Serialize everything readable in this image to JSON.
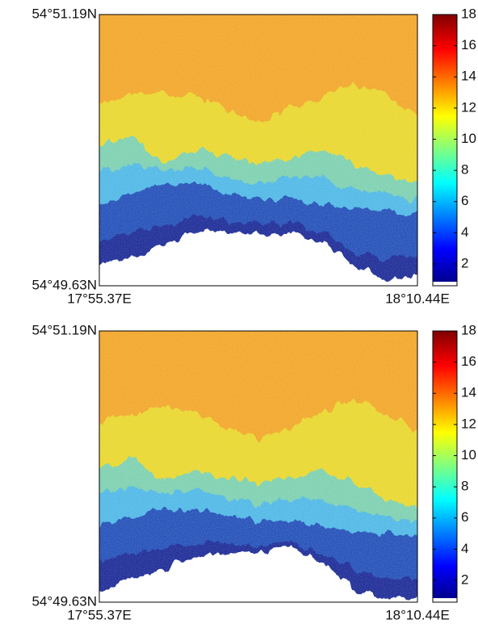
{
  "chart_data": [
    {
      "type": "heatmap",
      "xlim": [
        17.92283,
        18.174
      ],
      "xticks": [
        {
          "value": 17.92283,
          "label": "17°55.37E"
        },
        {
          "value": 18.174,
          "label": "18°10.44E"
        }
      ],
      "ylim": [
        54.82717,
        54.85317
      ],
      "yticks": [
        {
          "value": 54.82717,
          "label": "54°49.63N"
        },
        {
          "value": 54.85317,
          "label": "54°51.19N"
        }
      ],
      "colorbar": {
        "lim": [
          0.6,
          18
        ],
        "ticks": [
          2,
          4,
          6,
          8,
          10,
          12,
          14,
          16,
          18
        ]
      }
    },
    {
      "type": "heatmap",
      "xlim": [
        17.92283,
        18.174
      ],
      "xticks": [
        {
          "value": 17.92283,
          "label": "17°55.37E"
        },
        {
          "value": 18.174,
          "label": "18°10.44E"
        }
      ],
      "ylim": [
        54.82717,
        54.85317
      ],
      "yticks": [
        {
          "value": 54.82717,
          "label": "54°49.63N"
        },
        {
          "value": 54.85317,
          "label": "54°51.19N"
        }
      ],
      "colorbar": {
        "lim": [
          0.6,
          18
        ],
        "ticks": [
          2,
          4,
          6,
          8,
          10,
          12,
          14,
          16,
          18
        ]
      }
    }
  ]
}
